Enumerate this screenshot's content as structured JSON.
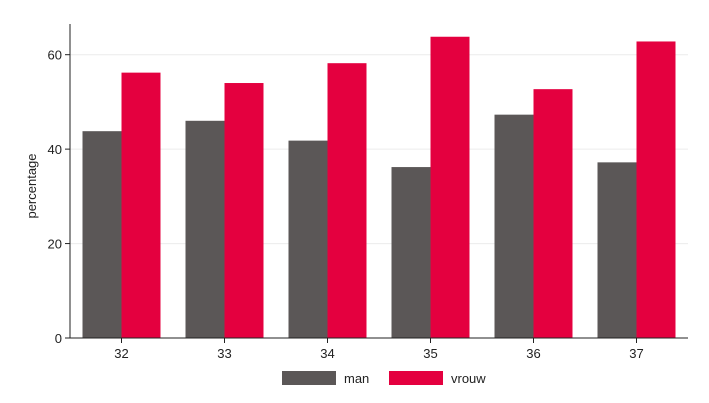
{
  "chart_data": {
    "type": "bar",
    "categories": [
      "32",
      "33",
      "34",
      "35",
      "36",
      "37"
    ],
    "series": [
      {
        "name": "man",
        "color": "#5b5757",
        "values": [
          43.8,
          46.0,
          41.8,
          36.2,
          47.3,
          37.2
        ]
      },
      {
        "name": "vrouw",
        "color": "#e4003f",
        "values": [
          56.2,
          54.0,
          58.2,
          63.8,
          52.7,
          62.8
        ]
      }
    ],
    "title": "",
    "xlabel": "",
    "ylabel": "percentage",
    "ylim": [
      0,
      66.5
    ],
    "yticks": [
      0,
      20,
      40,
      60
    ],
    "grid": true,
    "legend_position": "bottom"
  }
}
